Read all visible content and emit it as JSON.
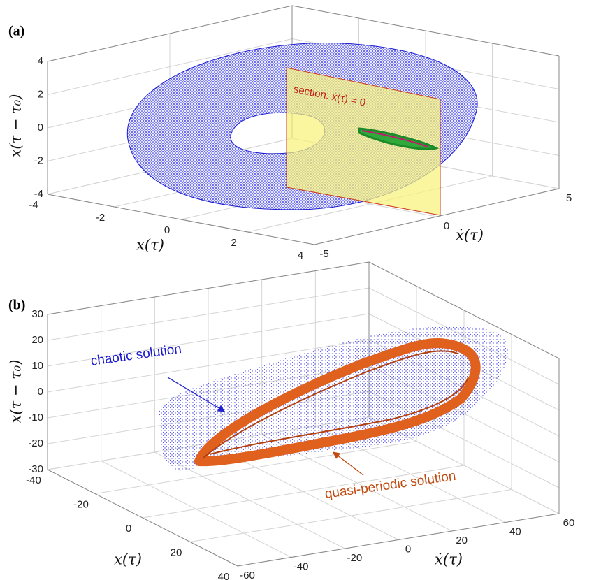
{
  "chart_data": [
    {
      "type": "scatter3d",
      "panel_label": "(a)",
      "xlabel": "x(τ)",
      "ylabel": "ẋ(τ)",
      "zlabel": "x(τ − τ₀)",
      "xlim": [
        -4,
        4
      ],
      "xticks": [
        -4,
        -2,
        0,
        2,
        4
      ],
      "ylim": [
        -5,
        5
      ],
      "yticks": [
        -5,
        0,
        5
      ],
      "zlim": [
        -4,
        4
      ],
      "zticks": [
        -4,
        -2,
        0,
        2,
        4
      ],
      "annotations": [
        "section: ẋ(τ) = 0"
      ]
    },
    {
      "type": "scatter3d",
      "panel_label": "(b)",
      "xlabel": "x(τ)",
      "ylabel": "ẋ(τ)",
      "zlabel": "x(τ − τ₀)",
      "xlim": [
        -40,
        40
      ],
      "xticks": [
        -40,
        -20,
        0,
        20,
        40
      ],
      "ylim": [
        -60,
        60
      ],
      "yticks": [
        -60,
        -40,
        -20,
        0,
        20,
        40,
        60
      ],
      "zlim": [
        -30,
        30
      ],
      "zticks": [
        -30,
        -20,
        -10,
        0,
        10,
        20,
        30
      ],
      "annotations": [
        "chaotic solution",
        "quasi-periodic solution"
      ]
    }
  ]
}
